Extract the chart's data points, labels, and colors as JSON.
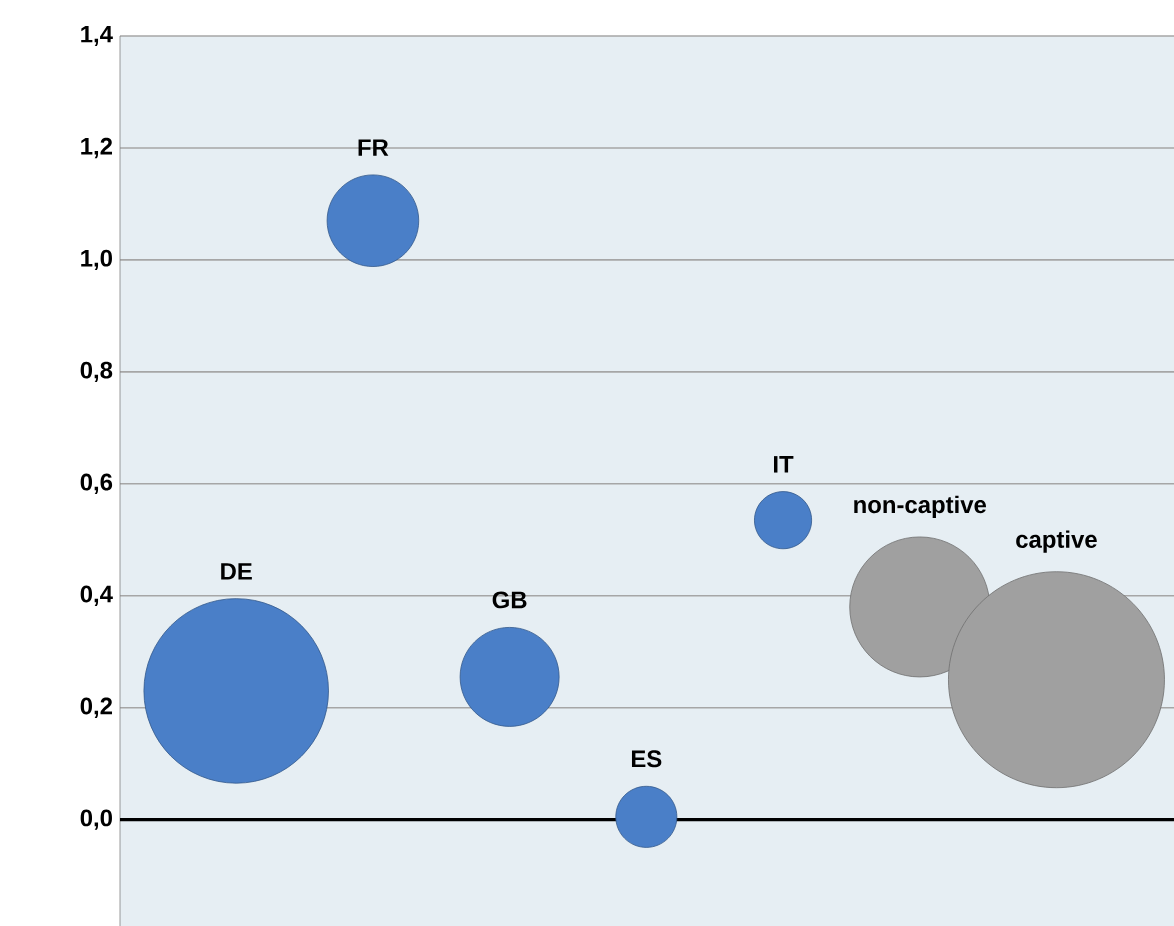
{
  "chart_data": {
    "type": "bubble",
    "categories": [
      "DE",
      "FR",
      "GB",
      "ES",
      "IT",
      "non-captive",
      "captive"
    ],
    "values": [
      0.23,
      1.07,
      0.255,
      0.005,
      0.535,
      0.38,
      0.25
    ],
    "sizes": [
      0.73,
      0.18,
      0.21,
      0.08,
      0.07,
      0.42,
      1
    ],
    "colors": [
      "#4a7fc8",
      "#4a7fc8",
      "#4a7fc8",
      "#4a7fc8",
      "#4a7fc8",
      "#a0a0a0",
      "#a0a0a0"
    ],
    "ylim": [
      -0.19,
      1.4
    ],
    "yticks": [
      {
        "value": 0,
        "label": "0,0"
      },
      {
        "value": 0.2,
        "label": "0,2"
      },
      {
        "value": 0.4,
        "label": "0,4"
      },
      {
        "value": 0.6,
        "label": "0,6"
      },
      {
        "value": 0.8,
        "label": "0,8"
      },
      {
        "value": 1.0,
        "label": "1,0"
      },
      {
        "value": 1.2,
        "label": "1,2"
      },
      {
        "value": 1.4,
        "label": "1,4"
      }
    ],
    "grid": "y",
    "ref_lines": [
      {
        "axis": "y",
        "value": 0,
        "color": "#000000"
      }
    ]
  }
}
